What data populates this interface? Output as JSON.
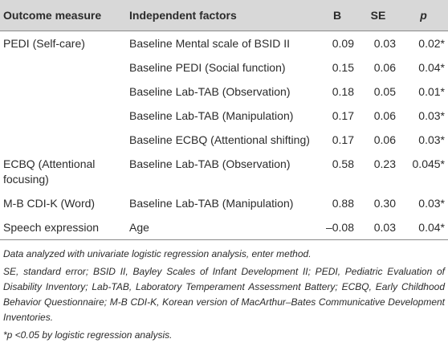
{
  "table": {
    "header": [
      "Outcome measure",
      "Independent factors",
      "B",
      "SE",
      "p"
    ],
    "rows": [
      {
        "outcome": "PEDI (Self-care)",
        "factor": "Baseline Mental scale of BSID II",
        "B": "0.09",
        "SE": "0.03",
        "p": "0.02*"
      },
      {
        "factor": "Baseline PEDI (Social function)",
        "B": "0.15",
        "SE": "0.06",
        "p": "0.04*"
      },
      {
        "factor": "Baseline Lab-TAB (Observation)",
        "B": "0.18",
        "SE": "0.05",
        "p": "0.01*"
      },
      {
        "factor": "Baseline Lab-TAB (Manipulation)",
        "B": "0.17",
        "SE": "0.06",
        "p": "0.03*"
      },
      {
        "factor": "Baseline ECBQ (Attentional shifting)",
        "B": "0.17",
        "SE": "0.06",
        "p": "0.03*"
      },
      {
        "outcome": "ECBQ (Attentional focusing)",
        "factor": "Baseline Lab-TAB (Observation)",
        "B": "0.58",
        "SE": "0.23",
        "p": "0.045*"
      },
      {
        "outcome": "M-B CDI-K (Word)",
        "factor": "Baseline Lab-TAB (Manipulation)",
        "B": "0.88",
        "SE": "0.30",
        "p": "0.03*"
      },
      {
        "outcome": "Speech expression",
        "factor": "Age",
        "B": "–0.08",
        "SE": "0.03",
        "p": "0.04*"
      }
    ]
  },
  "notes": [
    "Data analyzed with univariate logistic regression analysis, enter method.",
    "SE, standard error; BSID II, Bayley Scales of Infant Development II; PEDI, Pediatric Evaluation of Disability Inventory; Lab-TAB, Laboratory Temperament Assessment Battery; ECBQ, Early Childhood Behavior Questionnaire; M-B CDI-K, Korean version of MacArthur–Bates Communicative Development Inventories.",
    "*p <0.05 by logistic regression analysis."
  ]
}
